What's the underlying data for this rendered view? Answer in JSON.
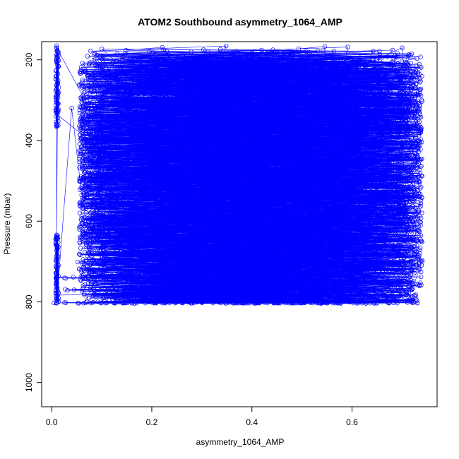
{
  "chart_data": {
    "type": "scatter",
    "title": "ATOM2 Southbound asymmetry_1064_AMP",
    "xlabel": "asymmetry_1064_AMP",
    "ylabel": "Pressure (mbar)",
    "xlim": [
      -0.02,
      0.77
    ],
    "ylim": [
      1060,
      155
    ],
    "y_reversed": true,
    "x_ticks": [
      0.0,
      0.2,
      0.4,
      0.6
    ],
    "x_tick_labels": [
      "0.0",
      "0.2",
      "0.4",
      "0.6"
    ],
    "y_ticks": [
      200,
      400,
      600,
      800,
      1000
    ],
    "y_tick_labels": [
      "200",
      "400",
      "600",
      "800",
      "1000"
    ],
    "grid": false,
    "legend": "none",
    "marker": "open-circle",
    "connect_points": true,
    "color": "#0000ff",
    "description_of_distribution": {
      "pressure_range": [
        160,
        805
      ],
      "value_range": [
        0.005,
        0.74
      ],
      "dense_core_range": [
        0.15,
        0.65
      ],
      "bottom_level": 800
    },
    "series": [
      {
        "values_sample": [
          [
            0.01,
            170
          ],
          [
            0.01,
            200
          ],
          [
            0.01,
            240
          ],
          [
            0.01,
            290
          ],
          [
            0.01,
            330
          ],
          [
            0.01,
            360
          ],
          [
            0.01,
            640
          ],
          [
            0.01,
            660
          ],
          [
            0.01,
            700
          ],
          [
            0.01,
            740
          ],
          [
            0.01,
            780
          ],
          [
            0.01,
            802
          ],
          [
            0.04,
            320
          ],
          [
            0.06,
            535
          ],
          [
            0.1,
            300
          ],
          [
            0.12,
            210
          ],
          [
            0.15,
            260
          ],
          [
            0.2,
            400
          ],
          [
            0.25,
            520
          ],
          [
            0.3,
            620
          ],
          [
            0.35,
            700
          ],
          [
            0.4,
            560
          ],
          [
            0.45,
            460
          ],
          [
            0.5,
            380
          ],
          [
            0.55,
            300
          ],
          [
            0.6,
            250
          ],
          [
            0.65,
            200
          ],
          [
            0.7,
            170
          ],
          [
            0.72,
            480
          ],
          [
            0.73,
            690
          ],
          [
            0.74,
            700
          ],
          [
            0.72,
            770
          ],
          [
            0.66,
            800
          ],
          [
            0.5,
            802
          ],
          [
            0.3,
            802
          ],
          [
            0.1,
            802
          ]
        ]
      }
    ]
  }
}
